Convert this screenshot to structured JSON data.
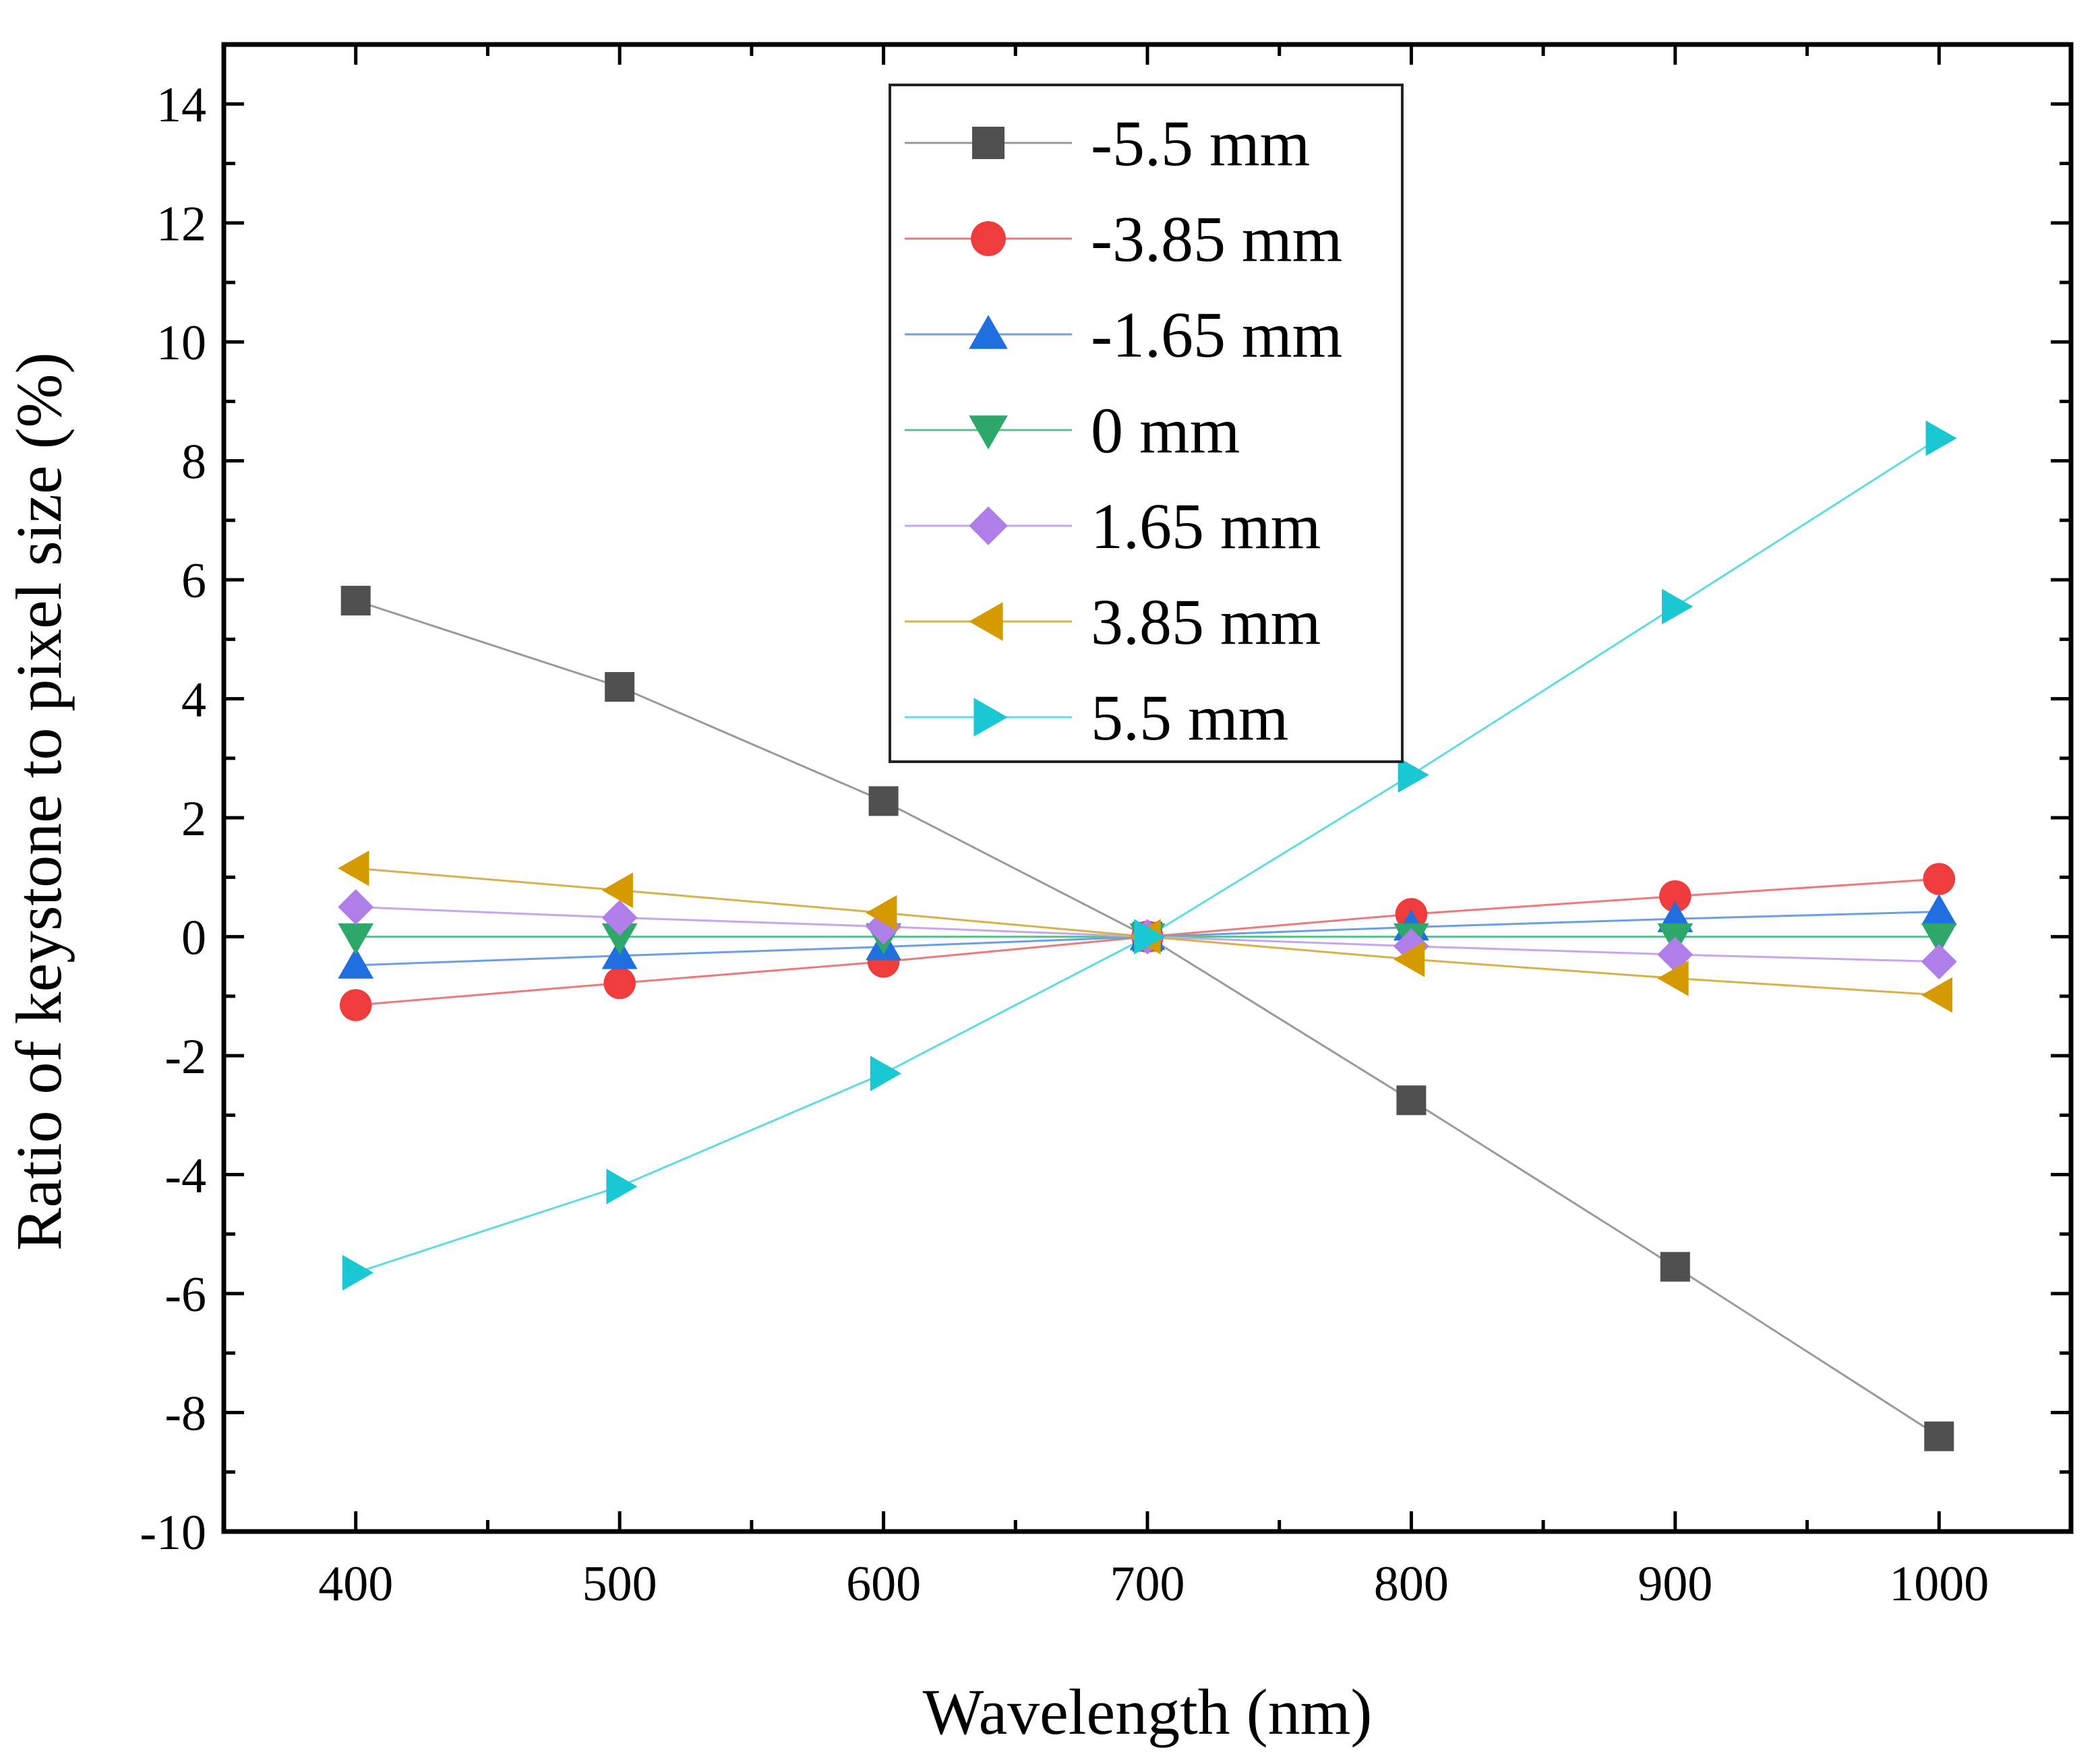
{
  "chart_data": {
    "type": "line",
    "title": "",
    "xlabel": "Wavelength (nm)",
    "ylabel": "Ratio of keystone to pixel size (%)",
    "xlim": [
      350,
      1050
    ],
    "ylim": [
      -10,
      15
    ],
    "xticks": [
      400,
      500,
      600,
      700,
      800,
      900,
      1000
    ],
    "yticks": [
      -10,
      -8,
      -6,
      -4,
      -2,
      0,
      2,
      4,
      6,
      8,
      10,
      12,
      14
    ],
    "grid": false,
    "legend_position": "top-center",
    "x": [
      400,
      500,
      600,
      700,
      800,
      900,
      1000
    ],
    "series": [
      {
        "name": "-5.5 mm",
        "color": "#505050",
        "line_color": "#9a9a9a",
        "marker": "square",
        "values": [
          5.65,
          4.2,
          2.28,
          0,
          -2.75,
          -5.55,
          -8.4
        ]
      },
      {
        "name": "-3.85 mm",
        "color": "#f03c3c",
        "line_color": "#f07878",
        "marker": "circle",
        "values": [
          -1.15,
          -0.78,
          -0.42,
          0,
          0.38,
          0.68,
          0.97
        ]
      },
      {
        "name": "-1.65 mm",
        "color": "#1f6fe0",
        "line_color": "#6a9ee8",
        "marker": "triangle-up",
        "values": [
          -0.48,
          -0.32,
          -0.17,
          0,
          0.16,
          0.3,
          0.42
        ]
      },
      {
        "name": "0 mm",
        "color": "#2ea86a",
        "line_color": "#5cc08e",
        "marker": "triangle-down",
        "values": [
          0,
          0,
          0,
          0,
          0,
          0,
          0
        ]
      },
      {
        "name": "1.65 mm",
        "color": "#b07ee8",
        "line_color": "#c7a5ef",
        "marker": "diamond",
        "values": [
          0.5,
          0.32,
          0.17,
          0,
          -0.16,
          -0.3,
          -0.42
        ]
      },
      {
        "name": "3.85 mm",
        "color": "#d49a00",
        "line_color": "#d9b14a",
        "marker": "triangle-left",
        "values": [
          1.15,
          0.78,
          0.4,
          0,
          -0.38,
          -0.7,
          -0.98
        ]
      },
      {
        "name": "5.5 mm",
        "color": "#19c8d2",
        "line_color": "#5fdbe2",
        "marker": "triangle-right",
        "values": [
          -5.65,
          -4.2,
          -2.3,
          0,
          2.72,
          5.55,
          8.38
        ]
      }
    ]
  }
}
